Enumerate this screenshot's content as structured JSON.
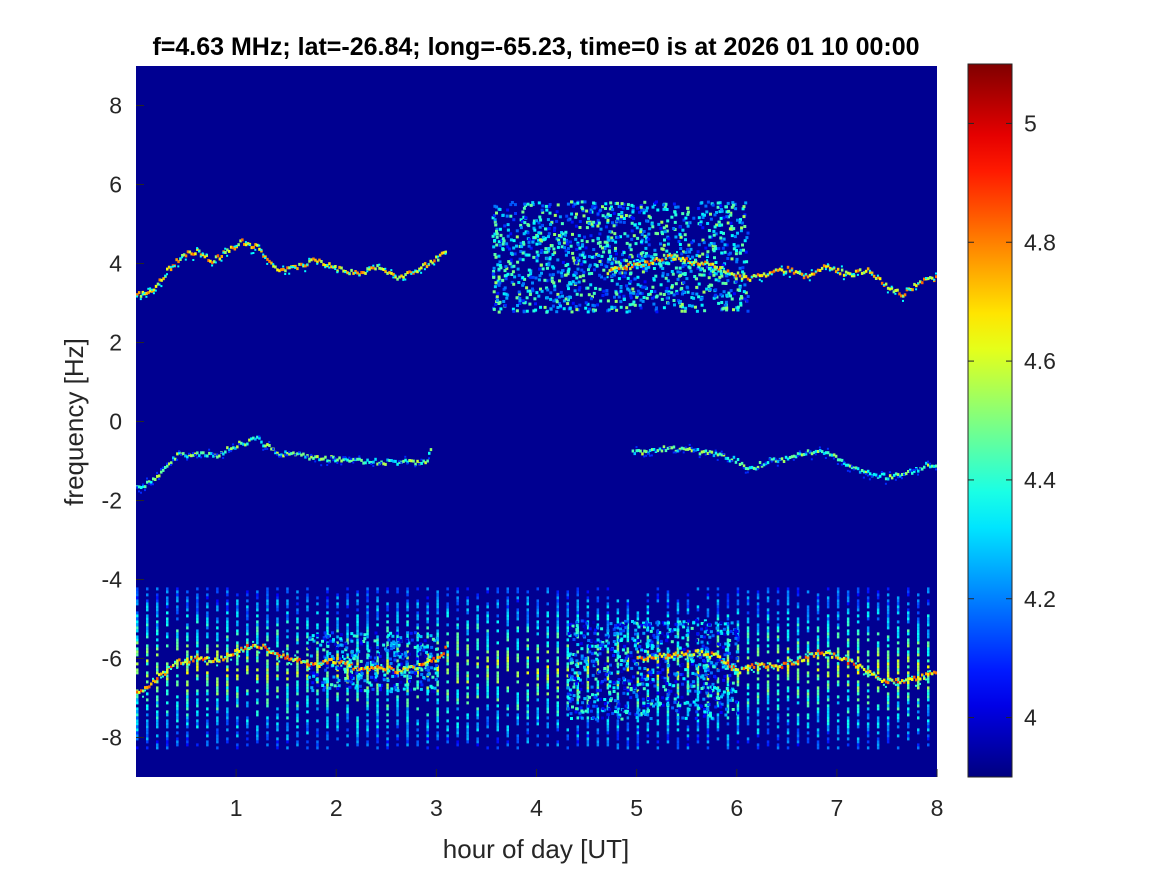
{
  "chart_data": {
    "type": "heatmap",
    "title": "f=4.63 MHz;  lat=-26.84; long=-65.23, time=0 is at 2026 01 10 00:00",
    "xlabel": "hour of day [UT]",
    "ylabel": "frequency [Hz]",
    "xlim": [
      0,
      8
    ],
    "ylim": [
      -9,
      9
    ],
    "x_ticks": [
      1,
      2,
      3,
      4,
      5,
      6,
      7,
      8
    ],
    "x_tick_labels": [
      "1",
      "2",
      "3",
      "4",
      "5",
      "6",
      "7",
      "8"
    ],
    "y_ticks": [
      -8,
      -6,
      -4,
      -2,
      0,
      2,
      4,
      6,
      8
    ],
    "y_tick_labels": [
      "-8",
      "-6",
      "-4",
      "-2",
      "0",
      "2",
      "4",
      "6",
      "8"
    ],
    "colorbar": {
      "colormap": "jet",
      "clim": [
        3.9,
        5.1
      ],
      "ticks": [
        4,
        4.2,
        4.4,
        4.6,
        4.8,
        5
      ],
      "tick_labels": [
        "4",
        "4.2",
        "4.4",
        "4.6",
        "4.8",
        "5"
      ]
    },
    "background_level": 3.92,
    "traces": [
      {
        "points": [
          [
            0.0,
            3.2
          ],
          [
            0.15,
            3.3
          ],
          [
            0.3,
            3.8
          ],
          [
            0.45,
            4.2
          ],
          [
            0.6,
            4.3
          ],
          [
            0.75,
            4.05
          ],
          [
            0.9,
            4.3
          ],
          [
            1.05,
            4.55
          ],
          [
            1.2,
            4.4
          ],
          [
            1.4,
            3.8
          ],
          [
            1.6,
            3.9
          ],
          [
            1.8,
            4.1
          ],
          [
            2.0,
            3.85
          ],
          [
            2.2,
            3.75
          ],
          [
            2.4,
            3.9
          ],
          [
            2.6,
            3.6
          ],
          [
            2.8,
            3.85
          ],
          [
            2.95,
            4.05
          ],
          [
            3.1,
            4.3
          ]
        ],
        "level": 4.85
      },
      {
        "points": [
          [
            4.7,
            3.8
          ],
          [
            4.85,
            3.9
          ],
          [
            5.0,
            3.95
          ],
          [
            5.15,
            4.05
          ],
          [
            5.3,
            4.2
          ],
          [
            5.45,
            4.1
          ],
          [
            5.6,
            4.0
          ],
          [
            5.75,
            3.95
          ],
          [
            5.9,
            3.8
          ],
          [
            6.1,
            3.6
          ],
          [
            6.3,
            3.75
          ],
          [
            6.5,
            3.85
          ],
          [
            6.7,
            3.65
          ],
          [
            6.9,
            3.95
          ],
          [
            7.1,
            3.7
          ],
          [
            7.3,
            3.85
          ],
          [
            7.5,
            3.4
          ],
          [
            7.65,
            3.2
          ],
          [
            7.8,
            3.5
          ],
          [
            8.0,
            3.65
          ]
        ],
        "level": 4.85
      },
      {
        "points": [
          [
            0.0,
            -1.7
          ],
          [
            0.2,
            -1.45
          ],
          [
            0.4,
            -0.85
          ],
          [
            0.6,
            -0.85
          ],
          [
            0.8,
            -0.85
          ],
          [
            1.0,
            -0.6
          ],
          [
            1.2,
            -0.45
          ],
          [
            1.4,
            -0.8
          ],
          [
            1.6,
            -0.85
          ],
          [
            1.8,
            -0.95
          ],
          [
            2.0,
            -0.95
          ],
          [
            2.3,
            -1.0
          ],
          [
            2.6,
            -1.05
          ],
          [
            2.9,
            -1.0
          ],
          [
            2.95,
            -0.5
          ]
        ],
        "level": 4.6
      },
      {
        "points": [
          [
            4.95,
            -0.8
          ],
          [
            5.2,
            -0.7
          ],
          [
            5.5,
            -0.7
          ],
          [
            5.8,
            -0.85
          ],
          [
            6.0,
            -1.0
          ],
          [
            6.1,
            -1.25
          ],
          [
            6.3,
            -1.0
          ],
          [
            6.5,
            -0.95
          ],
          [
            6.7,
            -0.75
          ],
          [
            6.9,
            -0.8
          ],
          [
            7.1,
            -1.1
          ],
          [
            7.3,
            -1.3
          ],
          [
            7.5,
            -1.4
          ],
          [
            7.7,
            -1.3
          ],
          [
            7.9,
            -1.1
          ],
          [
            8.0,
            -1.1
          ]
        ],
        "level": 4.6
      },
      {
        "points": [
          [
            0.0,
            -6.9
          ],
          [
            0.2,
            -6.5
          ],
          [
            0.4,
            -6.1
          ],
          [
            0.6,
            -6.0
          ],
          [
            0.8,
            -6.05
          ],
          [
            1.0,
            -5.8
          ],
          [
            1.2,
            -5.65
          ],
          [
            1.4,
            -5.9
          ],
          [
            1.6,
            -6.05
          ],
          [
            1.8,
            -6.15
          ],
          [
            2.0,
            -6.05
          ],
          [
            2.2,
            -6.25
          ],
          [
            2.4,
            -6.2
          ],
          [
            2.6,
            -6.3
          ],
          [
            2.8,
            -6.2
          ],
          [
            3.0,
            -6.0
          ],
          [
            3.1,
            -5.7
          ]
        ],
        "level": 4.9
      },
      {
        "points": [
          [
            5.0,
            -6.0
          ],
          [
            5.2,
            -5.95
          ],
          [
            5.4,
            -5.9
          ],
          [
            5.6,
            -5.85
          ],
          [
            5.8,
            -5.95
          ],
          [
            6.0,
            -6.35
          ],
          [
            6.2,
            -6.15
          ],
          [
            6.4,
            -6.2
          ],
          [
            6.6,
            -6.05
          ],
          [
            6.8,
            -5.85
          ],
          [
            7.0,
            -5.95
          ],
          [
            7.2,
            -6.2
          ],
          [
            7.4,
            -6.5
          ],
          [
            7.6,
            -6.6
          ],
          [
            7.8,
            -6.5
          ],
          [
            8.0,
            -6.35
          ]
        ],
        "level": 4.9
      }
    ],
    "scatter_regions": [
      {
        "x_range": [
          3.55,
          6.1
        ],
        "y_range": [
          2.8,
          5.6
        ],
        "level": 4.55
      },
      {
        "x_range": [
          4.3,
          6.0
        ],
        "y_range": [
          -7.5,
          -5.0
        ],
        "level": 4.45
      },
      {
        "x_range": [
          1.7,
          3.0
        ],
        "y_range": [
          -6.8,
          -5.3
        ],
        "level": 4.45
      }
    ],
    "vertical_streaks": {
      "x_start": 0.0,
      "spacing": 0.1,
      "y_range": [
        -8.3,
        -4.2
      ],
      "level": 4.55
    }
  }
}
